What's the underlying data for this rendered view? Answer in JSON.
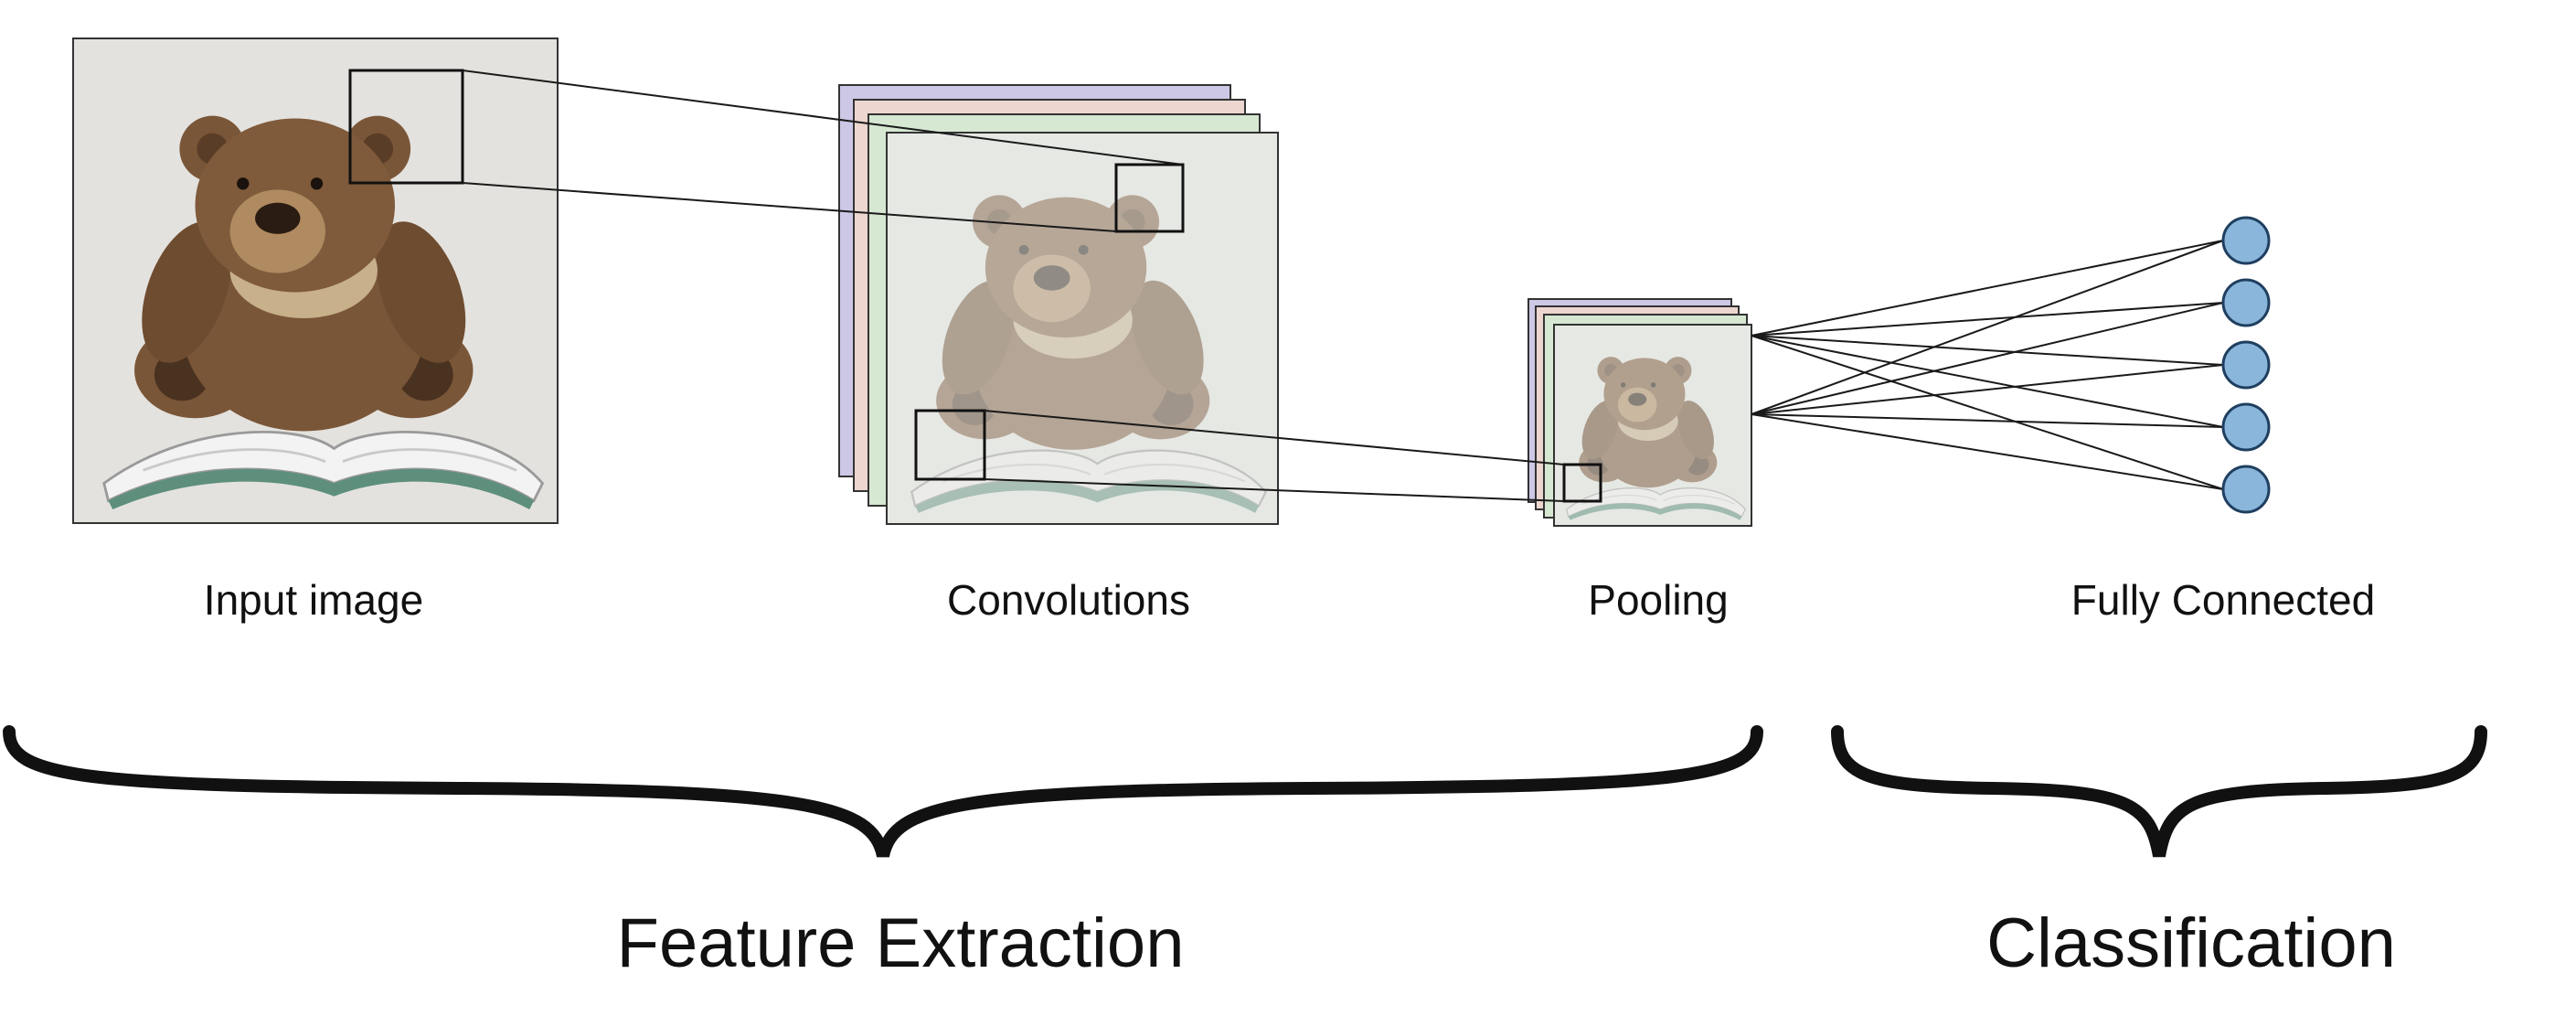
{
  "diagram": {
    "stage_labels": {
      "input": "Input image",
      "convolutions": "Convolutions",
      "pooling": "Pooling",
      "fully_connected": "Fully Connected"
    },
    "group_labels": {
      "feature_extraction": "Feature Extraction",
      "classification": "Classification"
    },
    "fully_connected_nodes": 5,
    "colors": {
      "line": "#1a1a1a",
      "node_fill": "#8bb6db",
      "node_stroke": "#1f3f60",
      "feature_map_tints": [
        "#ccc8e6",
        "#ecd6cf",
        "#d6e8d2"
      ],
      "photo_background": "#e4e2de",
      "bear_fur": "#7a5638",
      "bear_muzzle": "#b08a60",
      "book_pages": "#f3f3f3",
      "book_cover": "#5d8f7c"
    }
  }
}
